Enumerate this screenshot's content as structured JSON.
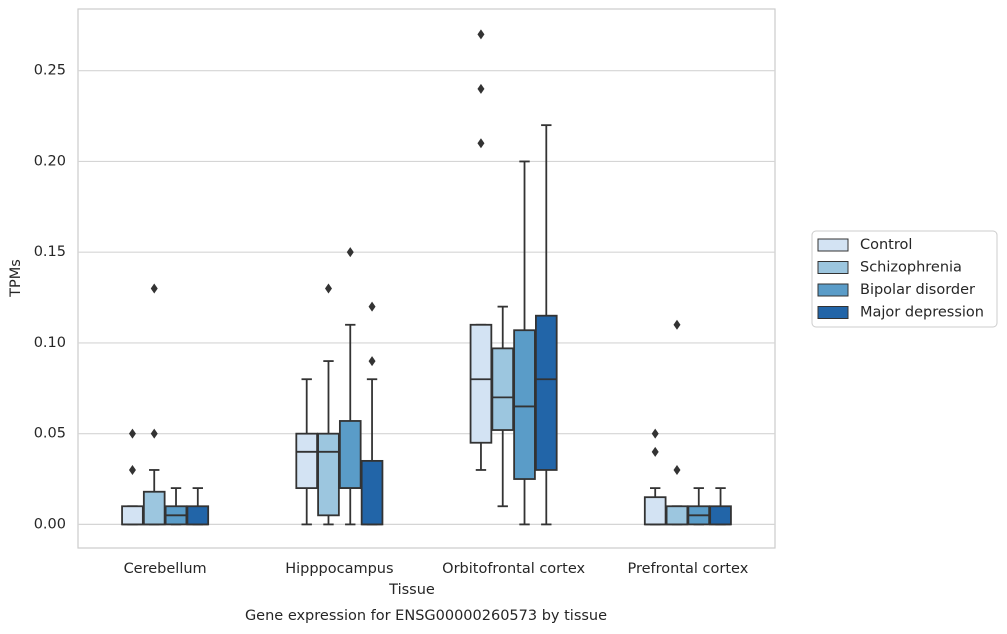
{
  "chart_data": {
    "type": "box",
    "title": "Gene expression for ENSG00000260573 by tissue",
    "xlabel": "Tissue",
    "ylabel": "TPMs",
    "categories": [
      "Cerebellum",
      "Hipppocampus",
      "Orbitofrontal cortex",
      "Prefrontal cortex"
    ],
    "ylim": [
      -0.013,
      0.284
    ],
    "yticks": [
      {
        "value": 0,
        "label": "0.00"
      },
      0.05,
      {
        "value": 0.1,
        "label": "0.10"
      },
      0.15,
      {
        "value": 0.2,
        "label": "0.20"
      },
      0.25
    ],
    "grid": true,
    "legend": "right",
    "series": [
      {
        "name": "Control",
        "color": "#d3e3f3",
        "boxes": [
          {
            "whislo": 0,
            "q1": 0,
            "med": 0,
            "q3": 0.01,
            "whishi": 0.01,
            "fliers": [
              0.03,
              0.05
            ]
          },
          {
            "whislo": 0,
            "q1": 0.02,
            "med": 0.04,
            "q3": 0.05,
            "whishi": 0.08,
            "fliers": []
          },
          {
            "whislo": 0.03,
            "q1": 0.045,
            "med": 0.08,
            "q3": 0.11,
            "whishi": 0.11,
            "fliers": [
              0.21,
              0.24,
              0.27
            ]
          },
          {
            "whislo": 0,
            "q1": 0,
            "med": 0,
            "q3": 0.015,
            "whishi": 0.02,
            "fliers": [
              0.04,
              0.05
            ]
          }
        ]
      },
      {
        "name": "Schizophrenia",
        "color": "#9cc6df",
        "boxes": [
          {
            "whislo": 0,
            "q1": 0,
            "med": 0,
            "q3": 0.018,
            "whishi": 0.03,
            "fliers": [
              0.05,
              0.13
            ]
          },
          {
            "whislo": 0,
            "q1": 0.005,
            "med": 0.04,
            "q3": 0.05,
            "whishi": 0.09,
            "fliers": [
              0.13
            ]
          },
          {
            "whislo": 0.01,
            "q1": 0.052,
            "med": 0.07,
            "q3": 0.097,
            "whishi": 0.12,
            "fliers": []
          },
          {
            "whislo": 0,
            "q1": 0,
            "med": 0,
            "q3": 0.01,
            "whishi": 0.01,
            "fliers": [
              0.03,
              0.11
            ]
          }
        ]
      },
      {
        "name": "Bipolar disorder",
        "color": "#5a9cc8",
        "boxes": [
          {
            "whislo": 0,
            "q1": 0,
            "med": 0.005,
            "q3": 0.01,
            "whishi": 0.02,
            "fliers": []
          },
          {
            "whislo": 0,
            "q1": 0.02,
            "med": 0.02,
            "q3": 0.057,
            "whishi": 0.11,
            "fliers": [
              0.15
            ]
          },
          {
            "whislo": 0,
            "q1": 0.025,
            "med": 0.065,
            "q3": 0.107,
            "whishi": 0.2,
            "fliers": []
          },
          {
            "whislo": 0,
            "q1": 0,
            "med": 0.005,
            "q3": 0.01,
            "whishi": 0.02,
            "fliers": []
          }
        ]
      },
      {
        "name": "Major depression",
        "color": "#2265a8",
        "boxes": [
          {
            "whislo": 0,
            "q1": 0,
            "med": 0,
            "q3": 0.01,
            "whishi": 0.02,
            "fliers": []
          },
          {
            "whislo": 0,
            "q1": 0,
            "med": 0,
            "q3": 0.035,
            "whishi": 0.08,
            "fliers": [
              0.09,
              0.12
            ]
          },
          {
            "whislo": 0,
            "q1": 0.03,
            "med": 0.08,
            "q3": 0.115,
            "whishi": 0.22,
            "fliers": []
          },
          {
            "whislo": 0,
            "q1": 0,
            "med": 0,
            "q3": 0.01,
            "whishi": 0.02,
            "fliers": []
          }
        ]
      }
    ]
  }
}
